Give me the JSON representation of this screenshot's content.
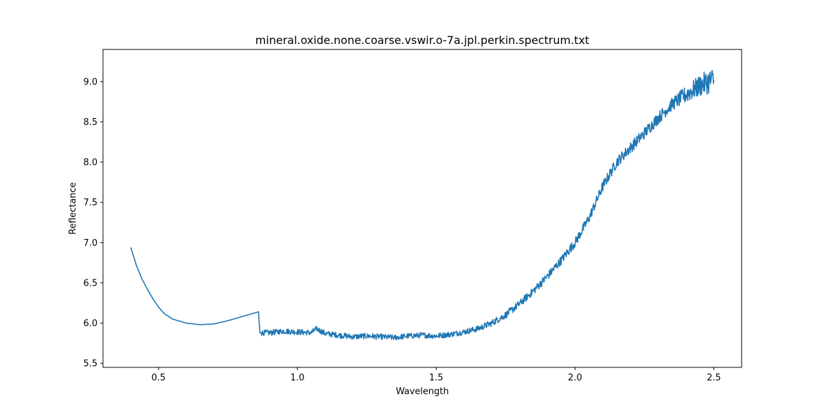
{
  "chart_data": {
    "type": "line",
    "title": "mineral.oxide.none.coarse.vswir.o-7a.jpl.perkin.spectrum.txt",
    "xlabel": "Wavelength",
    "ylabel": "Reflectance",
    "xlim": [
      0.3,
      2.6
    ],
    "ylim": [
      5.45,
      9.4
    ],
    "xticks": [
      0.5,
      1.0,
      1.5,
      2.0,
      2.5
    ],
    "xtick_labels": [
      "0.5",
      "1.0",
      "1.5",
      "2.0",
      "2.5"
    ],
    "yticks": [
      5.5,
      6.0,
      6.5,
      7.0,
      7.5,
      8.0,
      8.5,
      9.0
    ],
    "ytick_labels": [
      "5.5",
      "6.0",
      "6.5",
      "7.0",
      "7.5",
      "8.0",
      "8.5",
      "9.0"
    ],
    "grid": false,
    "series": [
      {
        "color": "#1f77b4",
        "x": [
          0.4,
          0.42,
          0.44,
          0.46,
          0.48,
          0.5,
          0.52,
          0.55,
          0.6,
          0.65,
          0.7,
          0.75,
          0.8,
          0.85,
          0.86,
          0.865,
          0.9,
          0.95,
          1.0,
          1.05,
          1.07,
          1.1,
          1.15,
          1.2,
          1.25,
          1.3,
          1.35,
          1.4,
          1.45,
          1.5,
          1.55,
          1.6,
          1.65,
          1.7,
          1.75,
          1.8,
          1.85,
          1.9,
          1.95,
          2.0,
          2.05,
          2.1,
          2.15,
          2.2,
          2.25,
          2.3,
          2.35,
          2.4,
          2.45,
          2.48,
          2.5
        ],
        "y": [
          6.94,
          6.72,
          6.55,
          6.42,
          6.3,
          6.2,
          6.12,
          6.05,
          6.0,
          5.98,
          5.99,
          6.03,
          6.08,
          6.13,
          6.14,
          5.88,
          5.88,
          5.9,
          5.89,
          5.88,
          5.93,
          5.87,
          5.85,
          5.83,
          5.84,
          5.83,
          5.82,
          5.84,
          5.85,
          5.84,
          5.86,
          5.89,
          5.93,
          6.0,
          6.1,
          6.24,
          6.4,
          6.58,
          6.78,
          7.0,
          7.3,
          7.7,
          8.0,
          8.18,
          8.36,
          8.55,
          8.72,
          8.84,
          8.95,
          9.0,
          9.02
        ]
      }
    ]
  }
}
